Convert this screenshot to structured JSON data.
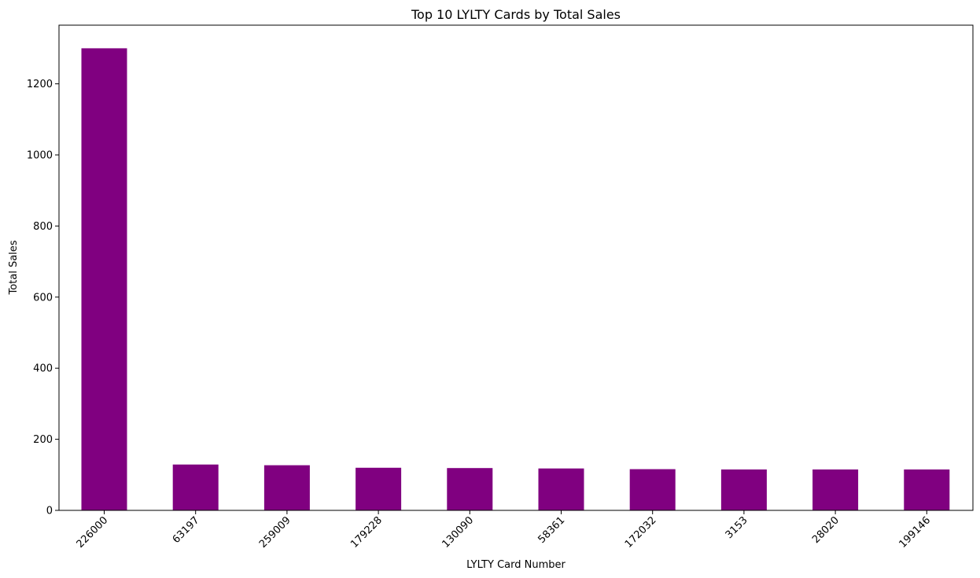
{
  "chart_data": {
    "type": "bar",
    "title": "Top 10 LYLTY Cards by Total Sales",
    "xlabel": "LYLTY Card Number",
    "ylabel": "Total Sales",
    "categories": [
      "226000",
      "63197",
      "259009",
      "179228",
      "130090",
      "58361",
      "172032",
      "3153",
      "28020",
      "199146"
    ],
    "values": [
      1300,
      129,
      127,
      120,
      119,
      118,
      116,
      115,
      115,
      115
    ],
    "ylim": [
      0,
      1365
    ],
    "yticks": [
      0,
      200,
      400,
      600,
      800,
      1000,
      1200
    ],
    "xtick_rotation_deg": 45,
    "bar_color": "#800080",
    "grid": false,
    "legend": "none"
  }
}
